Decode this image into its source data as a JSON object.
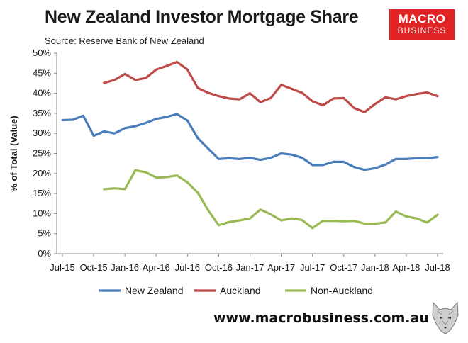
{
  "header": {
    "title": "New Zealand Investor Mortgage Share",
    "subtitle": "Source: Reserve Bank of New Zealand"
  },
  "logo": {
    "line1": "MACRO",
    "line2": "BUSINESS"
  },
  "footer": {
    "url": "www.macrobusiness.com.au"
  },
  "colors": {
    "new_zealand": "#4a7ebb",
    "auckland": "#be4b48",
    "non_auckland": "#98b954",
    "logo_bg": "#e02424"
  },
  "chart_data": {
    "type": "line",
    "title": "New Zealand Investor Mortgage Share",
    "subtitle": "Source: Reserve Bank of New Zealand",
    "ylabel": "% of Total (Value)",
    "xlabel": "",
    "ylim": [
      0,
      50
    ],
    "yticks": [
      "0%",
      "5%",
      "10%",
      "15%",
      "20%",
      "25%",
      "30%",
      "35%",
      "40%",
      "45%",
      "50%"
    ],
    "x_tick_labels": [
      "Jul-15",
      "Oct-15",
      "Jan-16",
      "Apr-16",
      "Jul-16",
      "Oct-16",
      "Jan-17",
      "Apr-17",
      "Jul-17",
      "Oct-17",
      "Jan-18",
      "Apr-18",
      "Jul-18"
    ],
    "x": [
      "Jul-15",
      "Aug-15",
      "Sep-15",
      "Oct-15",
      "Nov-15",
      "Dec-15",
      "Jan-16",
      "Feb-16",
      "Mar-16",
      "Apr-16",
      "May-16",
      "Jun-16",
      "Jul-16",
      "Aug-16",
      "Sep-16",
      "Oct-16",
      "Nov-16",
      "Dec-16",
      "Jan-17",
      "Feb-17",
      "Mar-17",
      "Apr-17",
      "May-17",
      "Jun-17",
      "Jul-17",
      "Aug-17",
      "Sep-17",
      "Oct-17",
      "Nov-17",
      "Dec-17",
      "Jan-18",
      "Feb-18",
      "Mar-18",
      "Apr-18",
      "May-18",
      "Jun-18",
      "Jul-18"
    ],
    "series": [
      {
        "name": "New Zealand",
        "color": "#4a7ebb",
        "values": [
          33.3,
          33.4,
          34.4,
          29.4,
          30.5,
          30.0,
          31.3,
          31.8,
          32.6,
          33.6,
          34.1,
          34.8,
          33.2,
          28.8,
          26.2,
          23.6,
          23.8,
          23.6,
          23.9,
          23.4,
          23.9,
          25.0,
          24.7,
          23.9,
          22.1,
          22.1,
          22.9,
          22.9,
          21.6,
          20.9,
          21.3,
          22.2,
          23.6,
          23.6,
          23.8,
          23.8,
          24.1
        ]
      },
      {
        "name": "Auckland",
        "color": "#be4b48",
        "values": [
          null,
          null,
          null,
          null,
          42.6,
          43.3,
          44.8,
          43.3,
          43.8,
          45.9,
          46.8,
          47.8,
          45.9,
          41.3,
          40.1,
          39.3,
          38.7,
          38.5,
          40.0,
          37.8,
          38.8,
          42.1,
          41.1,
          40.1,
          38.0,
          37.0,
          38.7,
          38.8,
          36.3,
          35.3,
          37.3,
          39.0,
          38.5,
          39.3,
          39.8,
          40.2,
          39.3
        ]
      },
      {
        "name": "Non-Auckland",
        "color": "#98b954",
        "values": [
          null,
          null,
          null,
          null,
          16.1,
          16.3,
          16.1,
          20.8,
          20.3,
          19.0,
          19.1,
          19.5,
          17.8,
          15.2,
          10.8,
          7.1,
          7.9,
          8.3,
          8.8,
          11.0,
          9.8,
          8.3,
          8.8,
          8.4,
          6.4,
          8.2,
          8.2,
          8.1,
          8.2,
          7.5,
          7.5,
          7.8,
          10.5,
          9.3,
          8.8,
          7.8,
          9.7
        ]
      }
    ],
    "grid": false,
    "legend_position": "bottom"
  }
}
